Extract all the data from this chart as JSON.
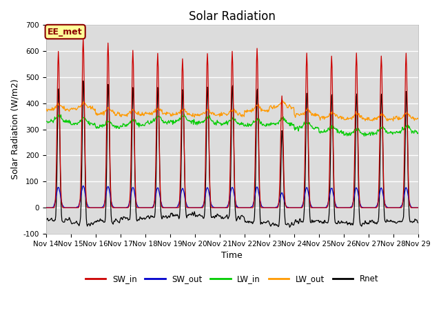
{
  "title": "Solar Radiation",
  "ylabel": "Solar Radiation (W/m2)",
  "xlabel": "Time",
  "ylim": [
    -100,
    700
  ],
  "bg_color": "#dcdcdc",
  "grid_color": "white",
  "series_colors": {
    "SW_in": "#cc0000",
    "SW_out": "#0000cc",
    "LW_in": "#00cc00",
    "LW_out": "#ff9900",
    "Rnet": "#000000"
  },
  "annotation_text": "EE_met",
  "annotation_bg": "#ffff99",
  "annotation_border": "#8b0000",
  "n_days": 15,
  "start_day": 14,
  "title_fontsize": 12,
  "label_fontsize": 9,
  "tick_fontsize": 7.5
}
